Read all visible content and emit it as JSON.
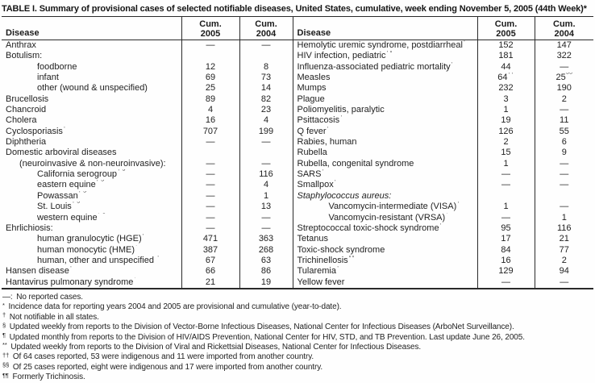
{
  "title": "TABLE I. Summary of provisional cases of selected notifiable diseases, United States, cumulative, week ending November 5, 2005 (44th Week)*",
  "columns": {
    "disease": "Disease",
    "cum": "Cum.",
    "y2005": "2005",
    "y2004": "2004"
  },
  "rows": [
    {
      "left": {
        "t": "Anthrax",
        "i": 0,
        "c05": "—",
        "c04": "—"
      },
      "right": {
        "t": "Hemolytic uremic syndrome, postdiarrheal",
        "s": "†",
        "i": 0,
        "c05": "152",
        "c04": "147"
      }
    },
    {
      "left": {
        "t": "Botulism:",
        "i": 0,
        "c05": "",
        "c04": ""
      },
      "right": {
        "t": "HIV infection, pediatric",
        "s": "†¶",
        "i": 0,
        "c05": "181",
        "c04": "322"
      }
    },
    {
      "left": {
        "t": "foodborne",
        "i": 2,
        "c05": "12",
        "c04": "8"
      },
      "right": {
        "t": "Influenza-associated pediatric mortality",
        "s": "†**",
        "i": 0,
        "c05": "44",
        "c04": "—"
      }
    },
    {
      "left": {
        "t": "infant",
        "i": 2,
        "c05": "69",
        "c04": "73"
      },
      "right": {
        "t": "Measles",
        "i": 0,
        "c05": "64",
        "c05s": "††",
        "c04": "25",
        "c04s": "§§"
      }
    },
    {
      "left": {
        "t": "other (wound & unspecified)",
        "i": 2,
        "c05": "25",
        "c04": "14"
      },
      "right": {
        "t": "Mumps",
        "i": 0,
        "c05": "232",
        "c04": "190"
      }
    },
    {
      "left": {
        "t": "Brucellosis",
        "i": 0,
        "c05": "89",
        "c04": "82"
      },
      "right": {
        "t": "Plague",
        "i": 0,
        "c05": "3",
        "c04": "2"
      }
    },
    {
      "left": {
        "t": "Chancroid",
        "i": 0,
        "c05": "4",
        "c04": "23"
      },
      "right": {
        "t": "Poliomyelitis, paralytic",
        "i": 0,
        "c05": "1",
        "c04": "—"
      }
    },
    {
      "left": {
        "t": "Cholera",
        "i": 0,
        "c05": "16",
        "c04": "4"
      },
      "right": {
        "t": "Psittacosis",
        "s": "†",
        "i": 0,
        "c05": "19",
        "c04": "11"
      }
    },
    {
      "left": {
        "t": "Cyclosporiasis",
        "s": "†",
        "i": 0,
        "c05": "707",
        "c04": "199"
      },
      "right": {
        "t": "Q fever",
        "s": "†",
        "i": 0,
        "c05": "126",
        "c04": "55"
      }
    },
    {
      "left": {
        "t": "Diphtheria",
        "i": 0,
        "c05": "—",
        "c04": "—"
      },
      "right": {
        "t": "Rabies, human",
        "i": 0,
        "c05": "2",
        "c04": "6"
      }
    },
    {
      "left": {
        "t": "Domestic arboviral diseases",
        "i": 0,
        "c05": "",
        "c04": ""
      },
      "right": {
        "t": "Rubella",
        "i": 0,
        "c05": "15",
        "c04": "9"
      }
    },
    {
      "left": {
        "t": "(neuroinvasive & non-neuroinvasive):",
        "i": 1,
        "c05": "—",
        "c04": "—"
      },
      "right": {
        "t": "Rubella, congenital syndrome",
        "i": 0,
        "c05": "1",
        "c04": "—"
      }
    },
    {
      "left": {
        "t": "California serogroup",
        "s": "† §",
        "i": 2,
        "c05": "—",
        "c04": "116"
      },
      "right": {
        "t": "SARS",
        "s": "† **",
        "i": 0,
        "c05": "—",
        "c04": "—"
      }
    },
    {
      "left": {
        "t": "eastern equine",
        "s": "† §",
        "i": 2,
        "c05": "—",
        "c04": "4"
      },
      "right": {
        "t": "Smallpox",
        "s": "†",
        "i": 0,
        "c05": "—",
        "c04": "—"
      }
    },
    {
      "left": {
        "t": "Powassan",
        "s": "† §",
        "i": 2,
        "c05": "—",
        "c04": "1"
      },
      "right": {
        "t": "Staphylococcus aureus:",
        "it": true,
        "i": 0,
        "c05": "",
        "c04": ""
      }
    },
    {
      "left": {
        "t": "St. Louis",
        "s": "† §",
        "i": 2,
        "c05": "—",
        "c04": "13"
      },
      "right": {
        "t": "Vancomycin-intermediate (VISA)",
        "s": "†",
        "i": 2,
        "c05": "1",
        "c04": "—"
      }
    },
    {
      "left": {
        "t": "western equine",
        "s": "† §",
        "i": 2,
        "c05": "—",
        "c04": "—"
      },
      "right": {
        "t": "Vancomycin-resistant (VRSA)",
        "s": "†",
        "i": 2,
        "c05": "—",
        "c04": "1"
      }
    },
    {
      "left": {
        "t": "Ehrlichiosis:",
        "i": 0,
        "c05": "—",
        "c04": "—"
      },
      "right": {
        "t": "Streptococcal toxic-shock syndrome",
        "s": "†",
        "i": 0,
        "c05": "95",
        "c04": "116"
      }
    },
    {
      "left": {
        "t": "human granulocytic (HGE)",
        "s": "†",
        "i": 2,
        "c05": "471",
        "c04": "363"
      },
      "right": {
        "t": "Tetanus",
        "i": 0,
        "c05": "17",
        "c04": "21"
      }
    },
    {
      "left": {
        "t": "human monocytic (HME)",
        "s": "†",
        "i": 2,
        "c05": "387",
        "c04": "268"
      },
      "right": {
        "t": "Toxic-shock syndrome",
        "i": 0,
        "c05": "84",
        "c04": "77"
      }
    },
    {
      "left": {
        "t": "human, other and unspecified ",
        "s": "†",
        "i": 2,
        "c05": "67",
        "c04": "63"
      },
      "right": {
        "t": "Trichinellosis",
        "s": "¶¶",
        "i": 0,
        "c05": "16",
        "c04": "2"
      }
    },
    {
      "left": {
        "t": "Hansen disease",
        "s": "†",
        "i": 0,
        "c05": "66",
        "c04": "86"
      },
      "right": {
        "t": "Tularemia",
        "s": "†",
        "i": 0,
        "c05": "129",
        "c04": "94"
      }
    },
    {
      "left": {
        "t": "Hantavirus pulmonary syndrome",
        "s": "†",
        "i": 0,
        "c05": "21",
        "c04": "19"
      },
      "right": {
        "t": "Yellow fever",
        "i": 0,
        "c05": "—",
        "c04": "—"
      }
    }
  ],
  "footnotes": [
    {
      "m": "—:",
      "sup": false,
      "t": "No reported cases."
    },
    {
      "m": "*",
      "sup": true,
      "t": "Incidence data for reporting years 2004 and 2005 are provisional and cumulative (year-to-date)."
    },
    {
      "m": "†",
      "sup": true,
      "t": "Not notifiable in all states."
    },
    {
      "m": "§",
      "sup": true,
      "t": "Updated weekly from reports to the Division of Vector-Borne Infectious Diseases, National Center for Infectious Diseases (ArboNet Surveillance)."
    },
    {
      "m": "¶",
      "sup": true,
      "t": "Updated monthly from reports to the Division of HIV/AIDS Prevention, National Center for HIV, STD, and TB Prevention. Last update June 26, 2005."
    },
    {
      "m": "**",
      "sup": true,
      "t": "Updated weekly from reports to the Division of Viral and Rickettsial Diseases, National Center for Infectious Diseases."
    },
    {
      "m": "††",
      "sup": true,
      "t": "Of 64 cases reported, 53 were indigenous and 11 were imported from another country."
    },
    {
      "m": "§§",
      "sup": true,
      "t": "Of 25 cases reported, eight were indigenous and 17 were imported from another country."
    },
    {
      "m": "¶¶",
      "sup": true,
      "t": "Formerly Trichinosis."
    }
  ]
}
